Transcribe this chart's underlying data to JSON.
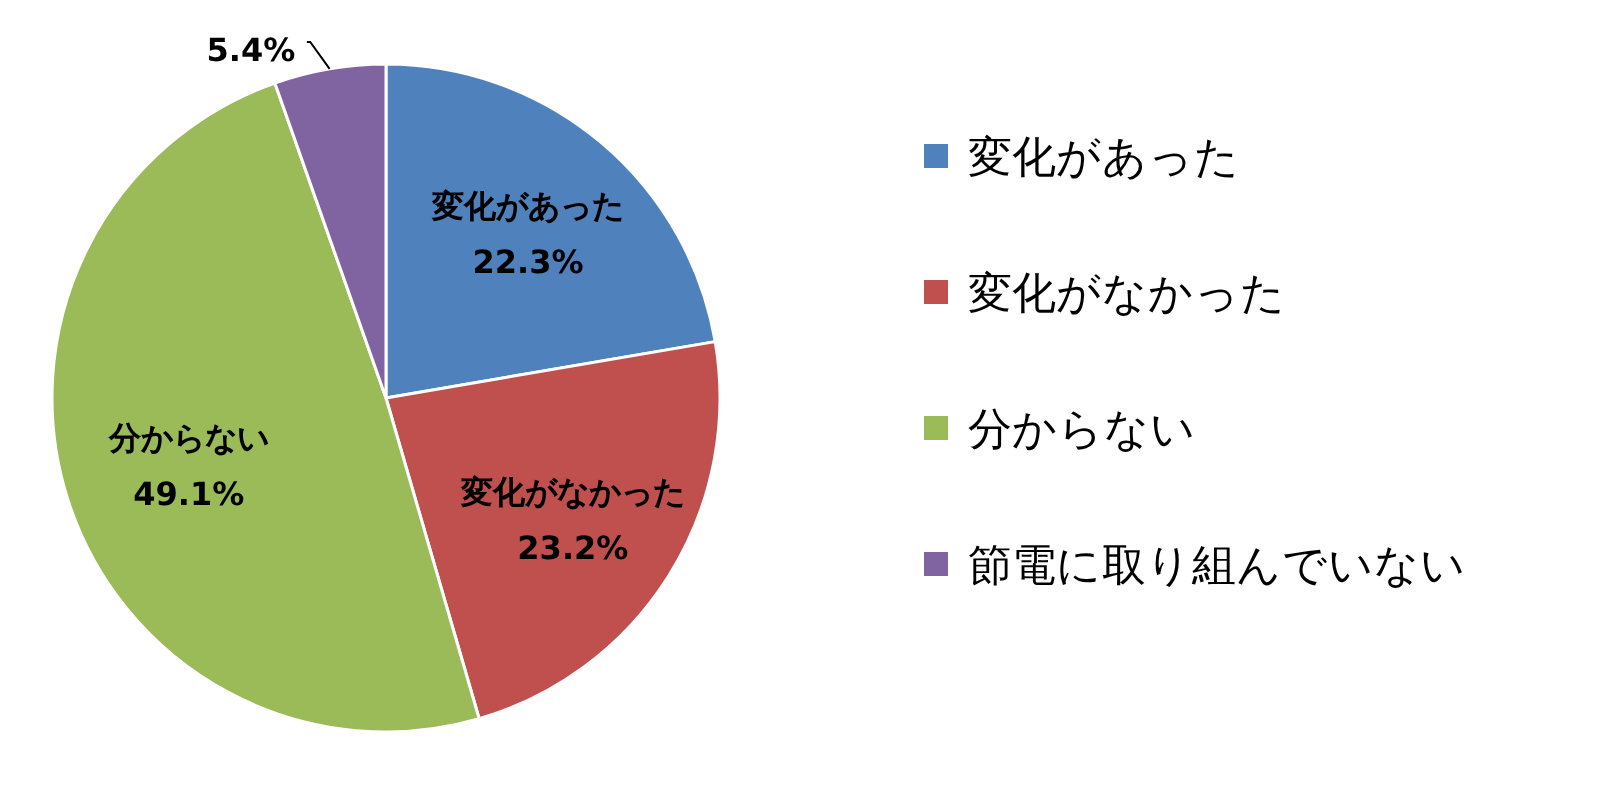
{
  "chart_data": {
    "type": "pie",
    "categories": [
      "変化があった",
      "変化がなかった",
      "分からない",
      "節電に取り組んでいない"
    ],
    "values": [
      22.3,
      23.2,
      49.1,
      5.4
    ],
    "colors": [
      "#4f81bd",
      "#c0504d",
      "#9bbb59",
      "#8064a2"
    ],
    "value_labels": [
      "変化があった\n22.3%",
      "変化がなかった\n23.2%",
      "分からない\n49.1%",
      "5.4%"
    ],
    "legend": "right"
  }
}
